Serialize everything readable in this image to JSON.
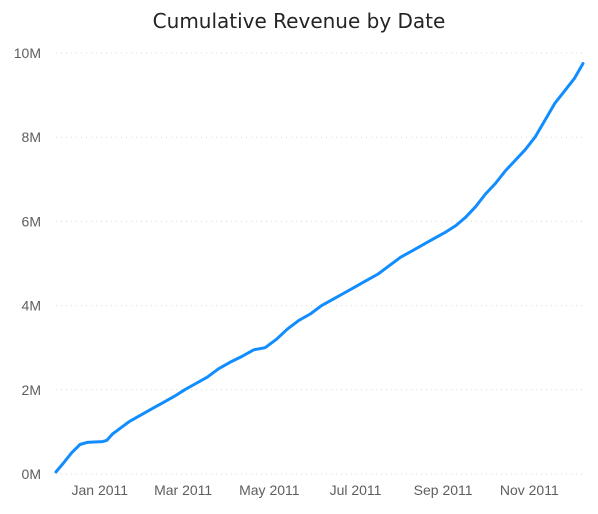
{
  "chart_data": {
    "type": "line",
    "title": "Cumulative Revenue by Date",
    "xlabel": "",
    "ylabel": "",
    "ylim": [
      0,
      10000000
    ],
    "xlim": [
      "2010-12-01",
      "2011-12-09"
    ],
    "y_ticks": [
      {
        "value": 0,
        "label": "0M"
      },
      {
        "value": 2000000,
        "label": "2M"
      },
      {
        "value": 4000000,
        "label": "4M"
      },
      {
        "value": 6000000,
        "label": "6M"
      },
      {
        "value": 8000000,
        "label": "8M"
      },
      {
        "value": 10000000,
        "label": "10M"
      }
    ],
    "x_ticks": [
      {
        "value": "2011-01-01",
        "label": "Jan 2011"
      },
      {
        "value": "2011-03-01",
        "label": "Mar 2011"
      },
      {
        "value": "2011-05-01",
        "label": "May 2011"
      },
      {
        "value": "2011-07-01",
        "label": "Jul 2011"
      },
      {
        "value": "2011-09-01",
        "label": "Sep 2011"
      },
      {
        "value": "2011-11-01",
        "label": "Nov 2011"
      }
    ],
    "grid": true,
    "line_color": "#118DFF",
    "series": [
      {
        "x": [
          "2010-12-01",
          "2010-12-06",
          "2010-12-12",
          "2010-12-18",
          "2010-12-23",
          "2010-12-28",
          "2011-01-03",
          "2011-01-06",
          "2011-01-10",
          "2011-01-16",
          "2011-01-22",
          "2011-01-30",
          "2011-02-07",
          "2011-02-15",
          "2011-02-23",
          "2011-03-02",
          "2011-03-10",
          "2011-03-18",
          "2011-03-26",
          "2011-04-03",
          "2011-04-12",
          "2011-04-20",
          "2011-04-28",
          "2011-05-06",
          "2011-05-14",
          "2011-05-22",
          "2011-05-30",
          "2011-06-07",
          "2011-06-15",
          "2011-06-23",
          "2011-07-01",
          "2011-07-09",
          "2011-07-17",
          "2011-07-25",
          "2011-08-02",
          "2011-08-10",
          "2011-08-18",
          "2011-08-26",
          "2011-09-03",
          "2011-09-10",
          "2011-09-17",
          "2011-09-24",
          "2011-10-01",
          "2011-10-08",
          "2011-10-15",
          "2011-10-22",
          "2011-10-29",
          "2011-11-05",
          "2011-11-12",
          "2011-11-19",
          "2011-11-26",
          "2011-12-03",
          "2011-12-09"
        ],
        "values": [
          50000,
          250000,
          500000,
          700000,
          750000,
          760000,
          770000,
          800000,
          950000,
          1100000,
          1250000,
          1400000,
          1550000,
          1700000,
          1850000,
          2000000,
          2150000,
          2300000,
          2500000,
          2650000,
          2800000,
          2950000,
          3000000,
          3200000,
          3450000,
          3650000,
          3800000,
          4000000,
          4150000,
          4300000,
          4450000,
          4600000,
          4750000,
          4950000,
          5150000,
          5300000,
          5450000,
          5600000,
          5750000,
          5900000,
          6100000,
          6350000,
          6650000,
          6900000,
          7200000,
          7450000,
          7700000,
          8000000,
          8400000,
          8800000,
          9100000,
          9400000,
          9750000
        ]
      }
    ]
  }
}
